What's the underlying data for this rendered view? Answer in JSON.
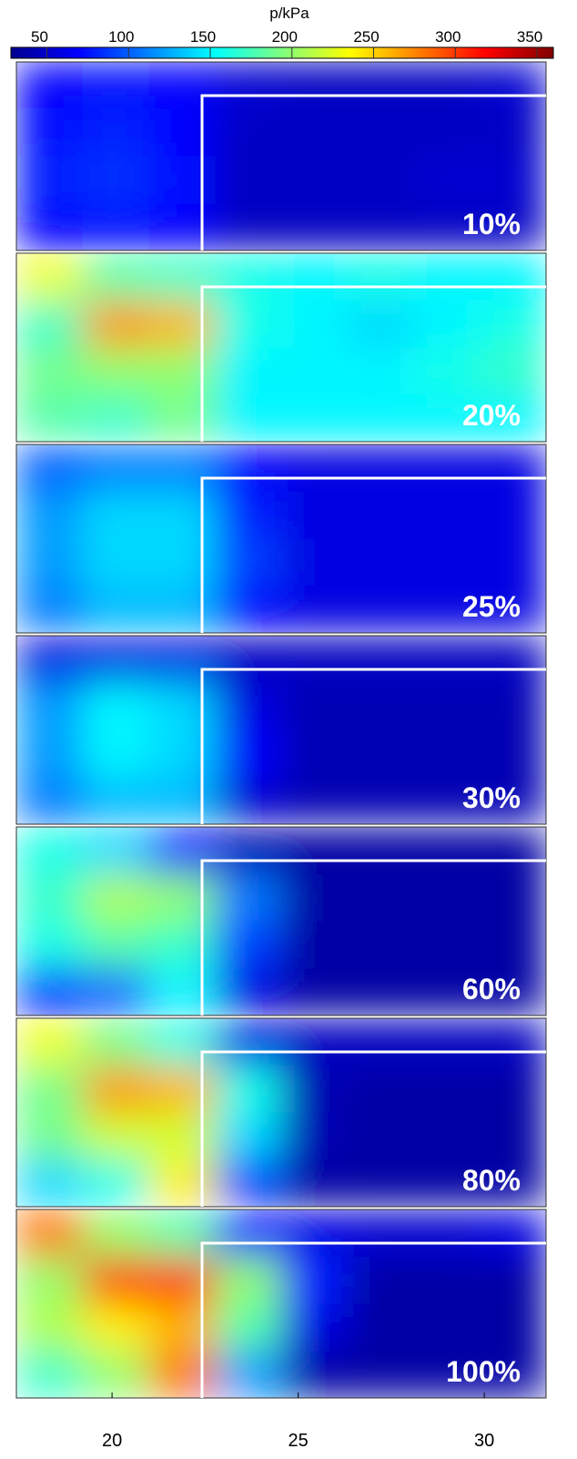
{
  "chart_data": {
    "type": "heatmap",
    "colormap": "jet",
    "colorbar_title": "p/kPa",
    "clim": [
      28,
      360
    ],
    "colorbar_ticks": [
      50,
      100,
      150,
      200,
      250,
      300,
      350
    ],
    "xlim": [
      17.43,
      31.66
    ],
    "xticks": [
      20,
      25,
      30
    ],
    "panels": [
      {
        "label": "10%",
        "values": [
          [
            70,
            75,
            70,
            55,
            50,
            50,
            50,
            55
          ],
          [
            75,
            80,
            70,
            50,
            50,
            50,
            50,
            50
          ],
          [
            80,
            85,
            75,
            50,
            50,
            50,
            55,
            55
          ],
          [
            70,
            75,
            70,
            50,
            50,
            50,
            50,
            50
          ]
        ]
      },
      {
        "label": "20%",
        "values": [
          [
            230,
            180,
            170,
            160,
            150,
            160,
            150,
            150
          ],
          [
            170,
            270,
            260,
            160,
            150,
            140,
            150,
            160
          ],
          [
            190,
            200,
            200,
            150,
            150,
            150,
            160,
            170
          ],
          [
            180,
            170,
            190,
            150,
            150,
            150,
            150,
            150
          ]
        ]
      },
      {
        "label": "25%",
        "values": [
          [
            100,
            110,
            110,
            70,
            60,
            60,
            60,
            60
          ],
          [
            120,
            140,
            140,
            80,
            60,
            60,
            60,
            60
          ],
          [
            120,
            140,
            140,
            90,
            60,
            60,
            60,
            60
          ],
          [
            110,
            130,
            130,
            70,
            60,
            60,
            60,
            60
          ]
        ]
      },
      {
        "label": "30%",
        "values": [
          [
            60,
            60,
            60,
            50,
            50,
            50,
            50,
            50
          ],
          [
            120,
            150,
            140,
            60,
            45,
            45,
            45,
            45
          ],
          [
            120,
            150,
            140,
            70,
            45,
            45,
            45,
            45
          ],
          [
            110,
            130,
            130,
            55,
            45,
            45,
            45,
            45
          ]
        ]
      },
      {
        "label": "60%",
        "values": [
          [
            160,
            140,
            80,
            45,
            40,
            40,
            40,
            40
          ],
          [
            170,
            210,
            200,
            110,
            40,
            40,
            40,
            40
          ],
          [
            160,
            180,
            170,
            90,
            40,
            40,
            40,
            40
          ],
          [
            80,
            100,
            150,
            60,
            40,
            40,
            40,
            40
          ]
        ]
      },
      {
        "label": "80%",
        "values": [
          [
            230,
            190,
            160,
            60,
            50,
            50,
            50,
            50
          ],
          [
            190,
            270,
            260,
            160,
            45,
            40,
            40,
            40
          ],
          [
            190,
            220,
            220,
            140,
            45,
            40,
            40,
            40
          ],
          [
            140,
            160,
            240,
            90,
            40,
            40,
            40,
            40
          ]
        ]
      },
      {
        "label": "100%",
        "values": [
          [
            280,
            200,
            180,
            70,
            60,
            55,
            55,
            60
          ],
          [
            200,
            300,
            300,
            200,
            80,
            40,
            40,
            40
          ],
          [
            210,
            240,
            260,
            180,
            60,
            40,
            40,
            40
          ],
          [
            170,
            200,
            280,
            120,
            40,
            40,
            40,
            40
          ]
        ]
      }
    ]
  }
}
